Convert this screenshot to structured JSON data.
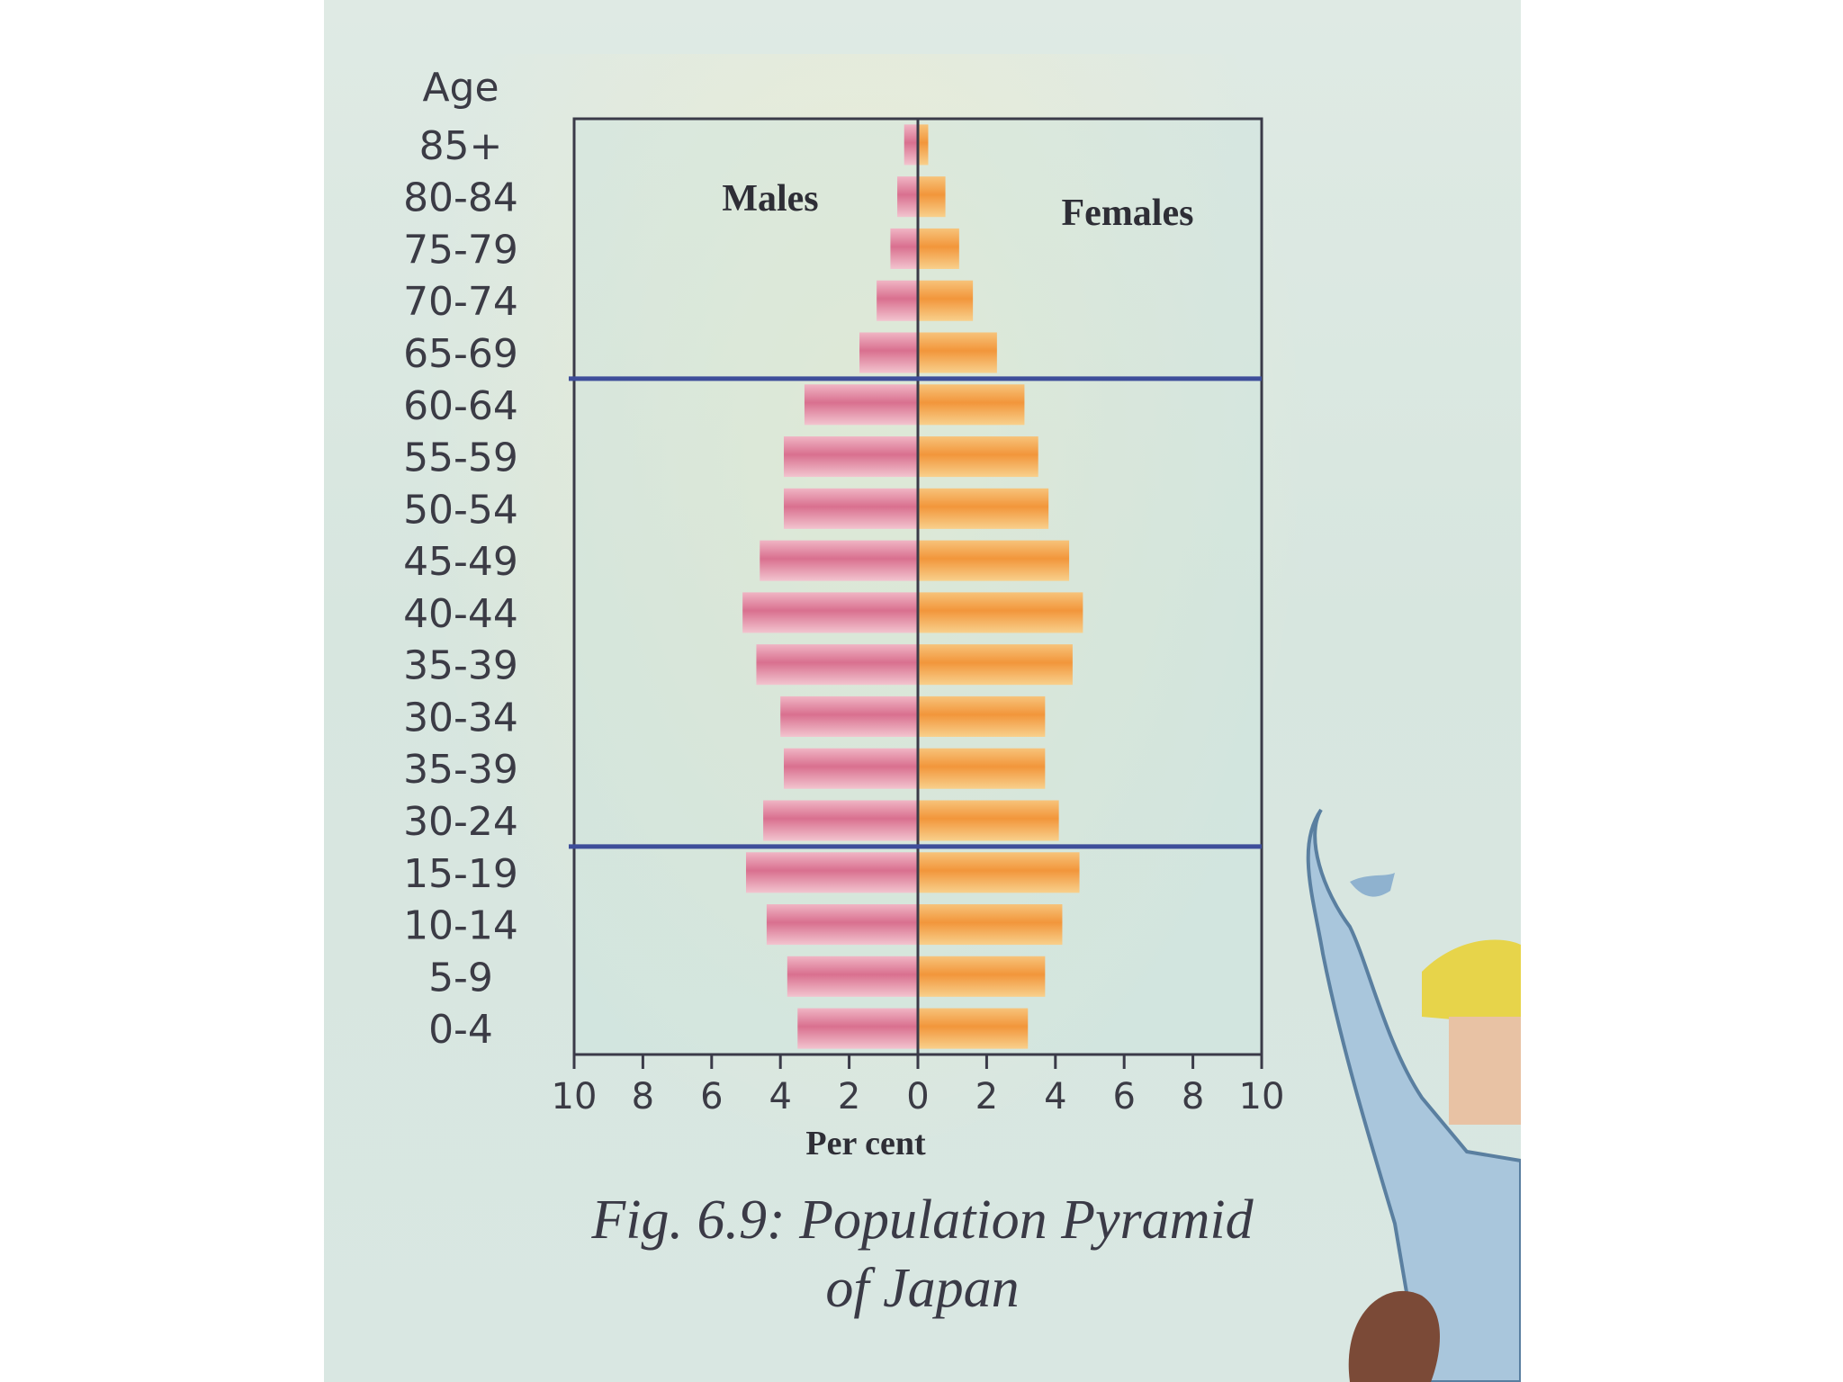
{
  "chart_data": {
    "type": "bar",
    "orientation": "horizontal",
    "subtype": "population-pyramid",
    "categories_top_to_bottom": [
      "85+",
      "80-84",
      "75-79",
      "70-74",
      "65-69",
      "60-64",
      "55-59",
      "50-54",
      "45-49",
      "40-44",
      "35-39",
      "30-34",
      "35-39",
      "30-24",
      "15-19",
      "10-14",
      "5-9",
      "0-4"
    ],
    "y_axis_title": "Age",
    "xlabel": "Per cent",
    "x_ticks_left": [
      "10",
      "8",
      "6",
      "4",
      "2",
      "0"
    ],
    "x_ticks_right": [
      "2",
      "4",
      "6",
      "8",
      "10"
    ],
    "xlim": [
      -10,
      10
    ],
    "reference_lines_between": [
      [
        "65-69",
        "60-64"
      ],
      [
        "30-24",
        "15-19"
      ]
    ],
    "grid": false,
    "series": [
      {
        "name": "Males",
        "side": "left",
        "color": "#d9708f",
        "values": [
          0.4,
          0.6,
          0.8,
          1.2,
          1.7,
          3.3,
          3.9,
          3.9,
          4.6,
          5.1,
          4.7,
          4.0,
          3.9,
          4.5,
          5.0,
          4.4,
          3.8,
          3.5
        ]
      },
      {
        "name": "Females",
        "side": "right",
        "color": "#f2a03e",
        "values": [
          0.3,
          0.8,
          1.2,
          1.6,
          2.3,
          3.1,
          3.5,
          3.8,
          4.4,
          4.8,
          4.5,
          3.7,
          3.7,
          4.1,
          4.7,
          4.2,
          3.7,
          3.2
        ]
      }
    ]
  },
  "caption": {
    "line1": "Fig. 6.9: Population Pyramid",
    "line2": "of Japan"
  },
  "colors": {
    "paper": "#dde9e3",
    "frame": "#3a3a48",
    "reference_line": "#3e4e9a"
  }
}
